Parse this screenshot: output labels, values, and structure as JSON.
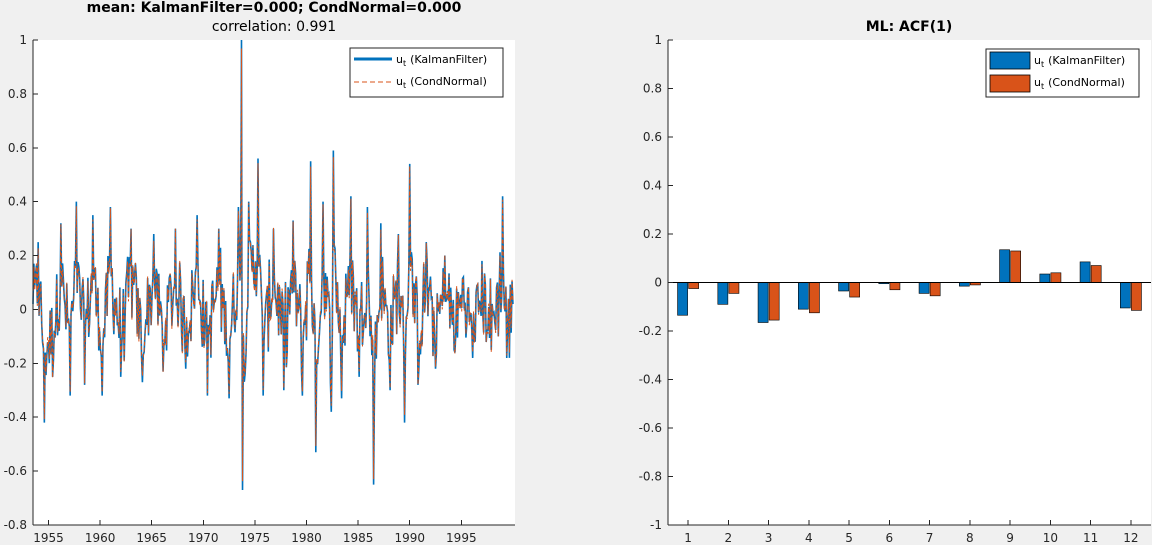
{
  "colors": {
    "kalman": "#0072BD",
    "condnormal": "#D95319",
    "axes_bg": "#ffffff",
    "figure_bg": "#f0f0f0"
  },
  "chart_data": [
    {
      "type": "line",
      "title": "mean: KalmanFilter=0.000; CondNormal=0.000",
      "subtitle": "correlation: 0.991",
      "xlim": [
        1953.5,
        2000.2
      ],
      "ylim": [
        -0.8,
        1
      ],
      "x_ticks": [
        1955,
        1960,
        1965,
        1970,
        1975,
        1980,
        1985,
        1990,
        1995
      ],
      "y_ticks": [
        -0.8,
        -0.6,
        -0.4,
        -0.2,
        0,
        0.2,
        0.4,
        0.6,
        0.8,
        1
      ],
      "x_tick_labels": [
        "1955",
        "1960",
        "1965",
        "1970",
        "1975",
        "1980",
        "1985",
        "1990",
        "1995"
      ],
      "y_tick_labels": [
        "-0.8",
        "-0.6",
        "-0.4",
        "-0.2",
        "0",
        "0.2",
        "0.4",
        "0.6",
        "0.8",
        "1"
      ],
      "legend_position": "top-right",
      "series": [
        {
          "name": "(KalmanFilter)",
          "style": "solid",
          "color": "#0072BD"
        },
        {
          "name": "(CondNormal)",
          "style": "dashed",
          "color": "#D95319"
        }
      ],
      "legend_symbol": "u",
      "legend_subscript": "t",
      "anchor_points": [
        {
          "x": 1953.5,
          "y": 0.02
        },
        {
          "x": 1954.0,
          "y": 0.25
        },
        {
          "x": 1954.6,
          "y": -0.42
        },
        {
          "x": 1955.4,
          "y": -0.25
        },
        {
          "x": 1956.2,
          "y": 0.32
        },
        {
          "x": 1957.1,
          "y": -0.32
        },
        {
          "x": 1957.7,
          "y": 0.4
        },
        {
          "x": 1958.5,
          "y": -0.28
        },
        {
          "x": 1959.3,
          "y": 0.35
        },
        {
          "x": 1960.2,
          "y": -0.32
        },
        {
          "x": 1961.0,
          "y": 0.38
        },
        {
          "x": 1962.0,
          "y": -0.25
        },
        {
          "x": 1963.0,
          "y": 0.3
        },
        {
          "x": 1964.1,
          "y": -0.27
        },
        {
          "x": 1965.2,
          "y": 0.28
        },
        {
          "x": 1966.1,
          "y": -0.23
        },
        {
          "x": 1967.3,
          "y": 0.3
        },
        {
          "x": 1968.3,
          "y": -0.22
        },
        {
          "x": 1969.4,
          "y": 0.35
        },
        {
          "x": 1970.4,
          "y": -0.32
        },
        {
          "x": 1971.5,
          "y": 0.3
        },
        {
          "x": 1972.5,
          "y": -0.33
        },
        {
          "x": 1973.4,
          "y": 0.38
        },
        {
          "x": 1973.7,
          "y": 1.0
        },
        {
          "x": 1973.8,
          "y": -0.67
        },
        {
          "x": 1974.4,
          "y": 0.4
        },
        {
          "x": 1975.3,
          "y": 0.56
        },
        {
          "x": 1975.8,
          "y": -0.32
        },
        {
          "x": 1976.8,
          "y": 0.3
        },
        {
          "x": 1977.8,
          "y": -0.3
        },
        {
          "x": 1978.7,
          "y": 0.33
        },
        {
          "x": 1979.6,
          "y": -0.32
        },
        {
          "x": 1980.4,
          "y": 0.55
        },
        {
          "x": 1980.9,
          "y": -0.53
        },
        {
          "x": 1981.6,
          "y": 0.4
        },
        {
          "x": 1982.4,
          "y": -0.38
        },
        {
          "x": 1982.6,
          "y": 0.59
        },
        {
          "x": 1983.4,
          "y": -0.33
        },
        {
          "x": 1984.3,
          "y": 0.42
        },
        {
          "x": 1985.1,
          "y": -0.25
        },
        {
          "x": 1985.9,
          "y": 0.38
        },
        {
          "x": 1986.5,
          "y": -0.65
        },
        {
          "x": 1987.2,
          "y": 0.32
        },
        {
          "x": 1988.1,
          "y": -0.3
        },
        {
          "x": 1988.9,
          "y": 0.28
        },
        {
          "x": 1989.5,
          "y": -0.42
        },
        {
          "x": 1990.0,
          "y": 0.54
        },
        {
          "x": 1990.8,
          "y": -0.28
        },
        {
          "x": 1991.6,
          "y": 0.25
        },
        {
          "x": 1992.5,
          "y": -0.22
        },
        {
          "x": 1993.4,
          "y": 0.2
        },
        {
          "x": 1994.3,
          "y": -0.15
        },
        {
          "x": 1995.2,
          "y": 0.12
        },
        {
          "x": 1996.1,
          "y": -0.18
        },
        {
          "x": 1997.0,
          "y": 0.18
        },
        {
          "x": 1997.9,
          "y": -0.15
        },
        {
          "x": 1998.5,
          "y": 0.1
        },
        {
          "x": 1999.0,
          "y": 0.42
        },
        {
          "x": 1999.4,
          "y": -0.18
        },
        {
          "x": 2000.0,
          "y": 0.02
        }
      ]
    },
    {
      "type": "bar",
      "title": "ML: ACF(1)",
      "categories": [
        "1",
        "2",
        "3",
        "4",
        "5",
        "6",
        "7",
        "8",
        "9",
        "10",
        "11",
        "12"
      ],
      "xlim": [
        0.5,
        12.5
      ],
      "ylim": [
        -1,
        1
      ],
      "y_ticks": [
        -1,
        -0.8,
        -0.6,
        -0.4,
        -0.2,
        0,
        0.2,
        0.4,
        0.6,
        0.8,
        1
      ],
      "y_tick_labels": [
        "-1",
        "-0.8",
        "-0.6",
        "-0.4",
        "-0.2",
        "0",
        "0.2",
        "0.4",
        "0.6",
        "0.8",
        "1"
      ],
      "legend_position": "top-right",
      "legend_symbol": "u",
      "legend_subscript": "t",
      "series": [
        {
          "name": "(KalmanFilter)",
          "color": "#0072BD",
          "values": [
            -0.135,
            -0.09,
            -0.165,
            -0.11,
            -0.035,
            -0.005,
            -0.045,
            -0.015,
            0.135,
            0.035,
            0.085,
            -0.105
          ]
        },
        {
          "name": "(CondNormal)",
          "color": "#D95319",
          "values": [
            -0.025,
            -0.045,
            -0.155,
            -0.125,
            -0.06,
            -0.03,
            -0.055,
            -0.01,
            0.13,
            0.04,
            0.07,
            -0.115
          ]
        }
      ]
    }
  ]
}
